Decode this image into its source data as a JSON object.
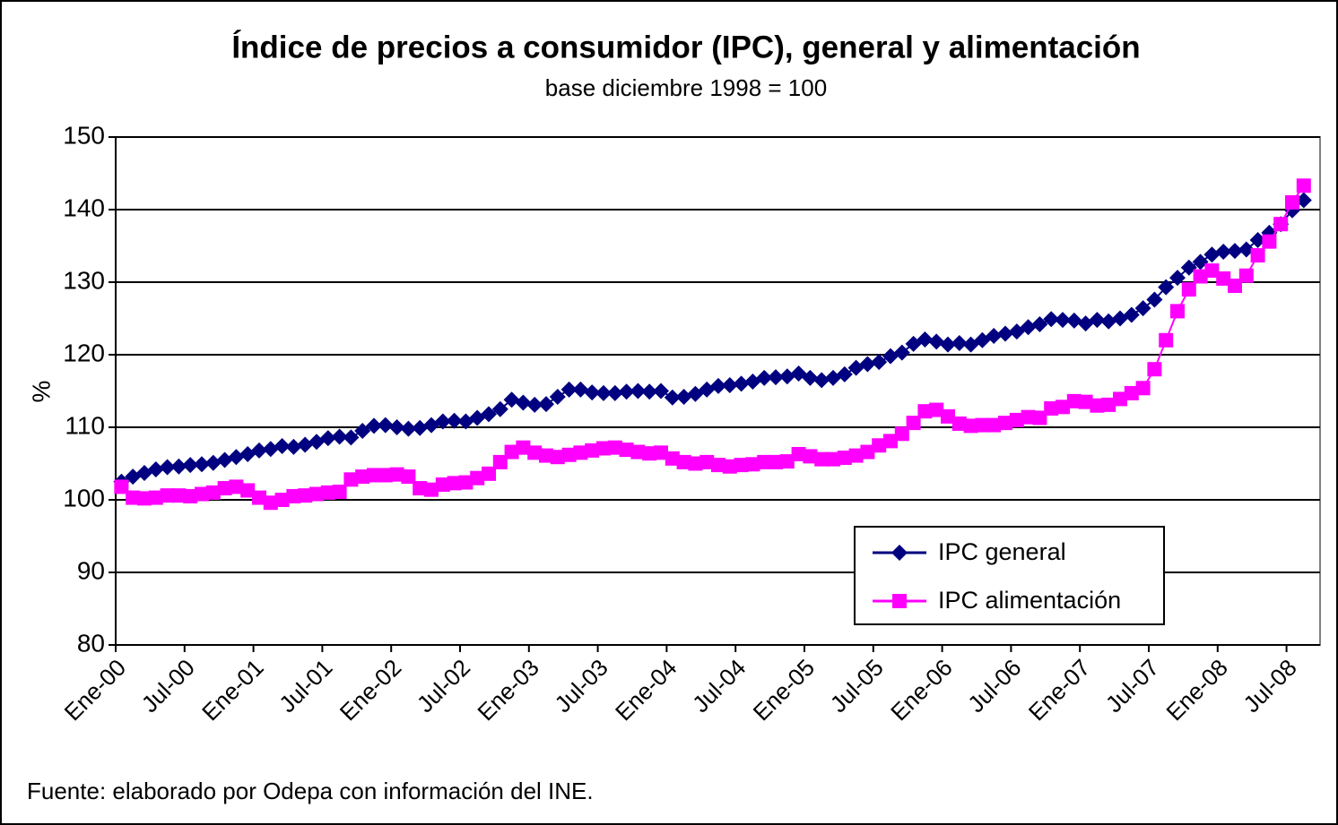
{
  "chart_data": {
    "type": "line",
    "title": "Índice de precios a consumidor (IPC), general y alimentación",
    "subtitle": "base diciembre 1998 = 100",
    "y_label": "%",
    "source": "Fuente: elaborado por Odepa con información del INE.",
    "ylim": [
      80,
      150
    ],
    "yticks": [
      80,
      90,
      100,
      110,
      120,
      130,
      140,
      150
    ],
    "grid": true,
    "legend": "lower right",
    "categories": [
      "Ene-00",
      null,
      null,
      null,
      null,
      null,
      "Jul-00",
      null,
      null,
      null,
      null,
      null,
      "Ene-01",
      null,
      null,
      null,
      null,
      null,
      "Jul-01",
      null,
      null,
      null,
      null,
      null,
      "Ene-02",
      null,
      null,
      null,
      null,
      null,
      "Jul-02",
      null,
      null,
      null,
      null,
      null,
      "Ene-03",
      null,
      null,
      null,
      null,
      null,
      "Jul-03",
      null,
      null,
      null,
      null,
      null,
      "Ene-04",
      null,
      null,
      null,
      null,
      null,
      "Jul-04",
      null,
      null,
      null,
      null,
      null,
      "Ene-05",
      null,
      null,
      null,
      null,
      null,
      "Jul-05",
      null,
      null,
      null,
      null,
      null,
      "Ene-06",
      null,
      null,
      null,
      null,
      null,
      "Jul-06",
      null,
      null,
      null,
      null,
      null,
      "Ene-07",
      null,
      null,
      null,
      null,
      null,
      "Jul-07",
      null,
      null,
      null,
      null,
      null,
      "Ene-08",
      null,
      null,
      null,
      null,
      null,
      "Jul-08",
      null
    ],
    "series": [
      {
        "name": "IPC general",
        "color": "#000080",
        "marker": "diamond",
        "values": [
          102.5,
          103.2,
          103.7,
          104.2,
          104.5,
          104.6,
          104.8,
          104.9,
          105.1,
          105.5,
          105.9,
          106.3,
          106.8,
          107.0,
          107.4,
          107.3,
          107.6,
          108.0,
          108.5,
          108.7,
          108.6,
          109.5,
          110.2,
          110.3,
          110.0,
          109.8,
          109.9,
          110.3,
          110.8,
          110.9,
          110.8,
          111.3,
          111.8,
          112.5,
          113.8,
          113.4,
          113.1,
          113.2,
          114.2,
          115.2,
          115.2,
          114.8,
          114.7,
          114.7,
          114.9,
          115.0,
          114.9,
          115.0,
          114.1,
          114.2,
          114.6,
          115.2,
          115.7,
          115.8,
          116.0,
          116.3,
          116.8,
          116.9,
          117.0,
          117.4,
          116.8,
          116.5,
          116.8,
          117.3,
          118.2,
          118.7,
          119.0,
          119.8,
          120.3,
          121.5,
          122.1,
          121.8,
          121.4,
          121.6,
          121.4,
          122.0,
          122.6,
          122.9,
          123.2,
          123.8,
          124.2,
          124.9,
          124.8,
          124.7,
          124.3,
          124.8,
          124.6,
          125.0,
          125.5,
          126.4,
          127.6,
          129.3,
          130.6,
          132.0,
          132.8,
          133.8,
          134.2,
          134.3,
          134.5,
          135.8,
          136.8,
          138.0,
          139.9,
          141.3
        ]
      },
      {
        "name": "IPC alimentación",
        "color": "#ff00ff",
        "marker": "square",
        "values": [
          101.8,
          100.3,
          100.2,
          100.3,
          100.6,
          100.6,
          100.5,
          100.8,
          101.0,
          101.6,
          101.8,
          101.3,
          100.3,
          99.6,
          100.0,
          100.5,
          100.6,
          100.8,
          101.0,
          101.1,
          102.8,
          103.2,
          103.4,
          103.4,
          103.5,
          103.2,
          101.6,
          101.4,
          102.1,
          102.3,
          102.4,
          103.0,
          103.6,
          105.2,
          106.6,
          107.2,
          106.5,
          106.1,
          105.9,
          106.2,
          106.5,
          106.8,
          107.1,
          107.2,
          106.9,
          106.6,
          106.4,
          106.5,
          105.7,
          105.2,
          105.0,
          105.2,
          104.8,
          104.6,
          104.8,
          104.9,
          105.2,
          105.2,
          105.3,
          106.3,
          106.0,
          105.6,
          105.6,
          105.8,
          106.1,
          106.6,
          107.5,
          108.1,
          109.1,
          110.6,
          112.2,
          112.4,
          111.5,
          110.5,
          110.2,
          110.3,
          110.3,
          110.6,
          111.0,
          111.4,
          111.3,
          112.6,
          112.8,
          113.6,
          113.5,
          113.0,
          113.1,
          113.9,
          114.7,
          115.4,
          118.0,
          122.0,
          126.0,
          129.0,
          130.8,
          131.6,
          130.5,
          129.5,
          130.9,
          133.7,
          135.6,
          138.0,
          141.0,
          143.3
        ]
      }
    ]
  }
}
